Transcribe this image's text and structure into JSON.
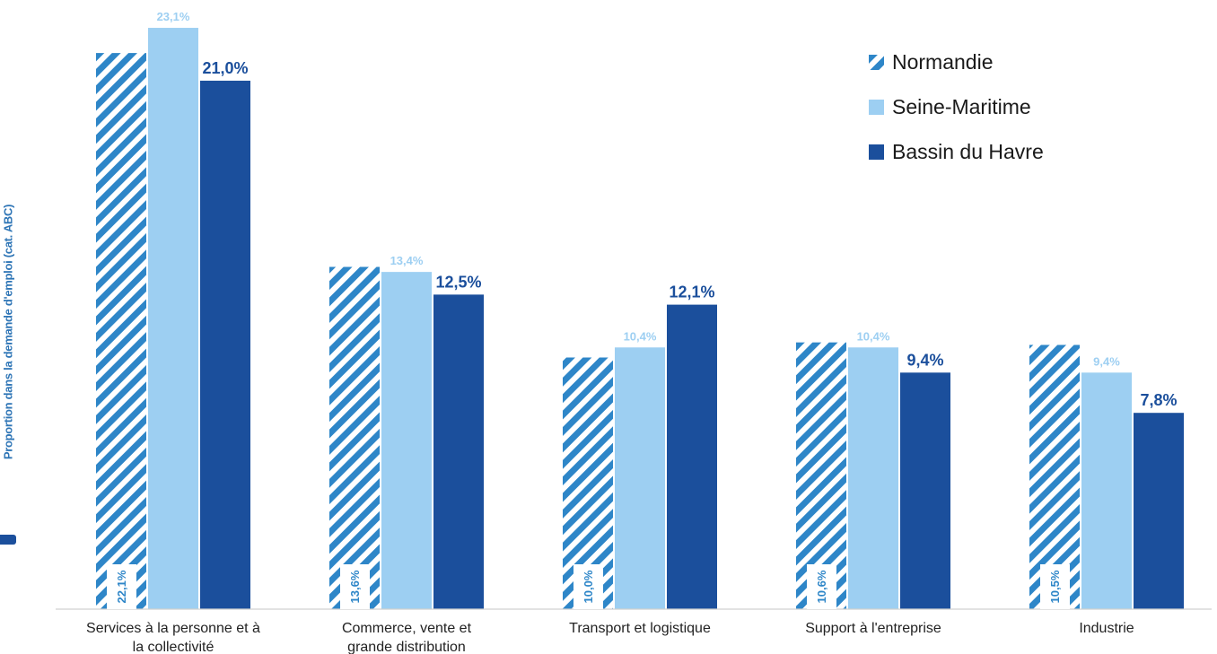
{
  "chart_data": {
    "type": "bar",
    "title": "",
    "xlabel": "",
    "ylabel": "Proportion dans la demande d'emploi (cat. ABC)",
    "ylim": [
      0,
      25
    ],
    "grid": false,
    "legend_position": "top-right",
    "categories": [
      [
        "Services à la personne et à",
        "la collectivité"
      ],
      [
        "Commerce, vente et",
        "grande distribution"
      ],
      [
        "Transport et logistique"
      ],
      [
        "Support à l'entreprise"
      ],
      [
        "Industrie"
      ]
    ],
    "series": [
      {
        "name": "Normandie",
        "values": [
          22.1,
          13.6,
          10.0,
          10.6,
          10.5
        ],
        "labels": [
          "22,1%",
          "13,6%",
          "10,0%",
          "10,6%",
          "10,5%"
        ],
        "color": "#2e86c8",
        "pattern": "hatched"
      },
      {
        "name": "Seine-Maritime",
        "values": [
          23.1,
          13.4,
          10.4,
          10.4,
          9.4
        ],
        "labels": [
          "23,1%",
          "13,4%",
          "10,4%",
          "10,4%",
          "9,4%"
        ],
        "color": "#9dcff2"
      },
      {
        "name": "Bassin du Havre",
        "values": [
          21.0,
          12.5,
          12.1,
          9.4,
          7.8
        ],
        "labels": [
          "21,0%",
          "12,5%",
          "12,1%",
          "9,4%",
          "7,8%"
        ],
        "color": "#1b4f9c"
      }
    ]
  }
}
